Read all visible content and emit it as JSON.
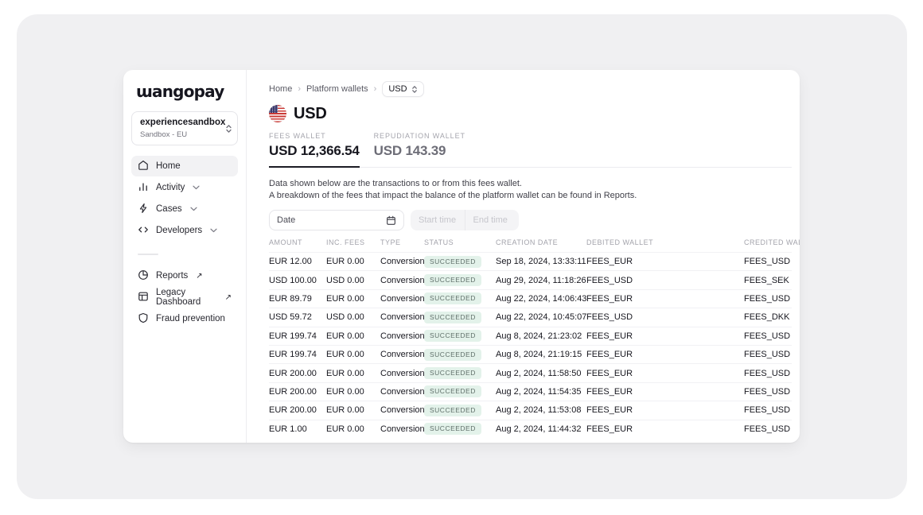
{
  "brand": {
    "logo_text": "ɯangopay"
  },
  "workspace": {
    "name": "experiencesandbox",
    "environment": "Sandbox - EU"
  },
  "sidebar": {
    "items": [
      {
        "label": "Home",
        "icon": "home-icon",
        "active": true
      },
      {
        "label": "Activity",
        "icon": "activity-icon",
        "expandable": true
      },
      {
        "label": "Cases",
        "icon": "cases-icon",
        "expandable": true
      },
      {
        "label": "Developers",
        "icon": "developers-icon",
        "expandable": true
      }
    ],
    "secondary_items": [
      {
        "label": "Reports",
        "icon": "pie-chart-icon",
        "external": true
      },
      {
        "label": "Legacy Dashboard",
        "icon": "dashboard-icon",
        "external": true
      },
      {
        "label": "Fraud prevention",
        "icon": "shield-icon",
        "external": false
      }
    ]
  },
  "icons": {
    "external_link": "↗"
  },
  "breadcrumb": {
    "items": [
      "Home",
      "Platform wallets"
    ],
    "separator": "›",
    "current": "USD"
  },
  "page": {
    "title": "USD",
    "flag": "us-flag"
  },
  "wallet_tabs": [
    {
      "label": "FEES WALLET",
      "value": "USD 12,366.54",
      "active": true
    },
    {
      "label": "REPUDIATION WALLET",
      "value": "USD 143.39",
      "active": false
    }
  ],
  "description": {
    "line1": "Data shown below are the transactions to or from this fees wallet.",
    "line2": "A breakdown of the fees that impact the balance of the platform wallet can be found in Reports."
  },
  "filters": {
    "date_placeholder": "Date",
    "start_time_placeholder": "Start time",
    "end_time_placeholder": "End time"
  },
  "table": {
    "columns": [
      "AMOUNT",
      "INC. FEES",
      "TYPE",
      "STATUS",
      "CREATION DATE",
      "DEBITED WALLET",
      "CREDITED WALLET"
    ],
    "rows": [
      {
        "amount": "EUR 12.00",
        "inc_fees": "EUR 0.00",
        "type": "Conversion",
        "status": "SUCCEEDED",
        "creation_date": "Sep 18, 2024, 13:33:11",
        "debited_wallet": "FEES_EUR",
        "credited_wallet": "FEES_USD"
      },
      {
        "amount": "USD 100.00",
        "inc_fees": "USD 0.00",
        "type": "Conversion",
        "status": "SUCCEEDED",
        "creation_date": "Aug 29, 2024, 11:18:26",
        "debited_wallet": "FEES_USD",
        "credited_wallet": "FEES_SEK"
      },
      {
        "amount": "EUR 89.79",
        "inc_fees": "EUR 0.00",
        "type": "Conversion",
        "status": "SUCCEEDED",
        "creation_date": "Aug 22, 2024, 14:06:43",
        "debited_wallet": "FEES_EUR",
        "credited_wallet": "FEES_USD"
      },
      {
        "amount": "USD 59.72",
        "inc_fees": "USD 0.00",
        "type": "Conversion",
        "status": "SUCCEEDED",
        "creation_date": "Aug 22, 2024, 10:45:07",
        "debited_wallet": "FEES_USD",
        "credited_wallet": "FEES_DKK"
      },
      {
        "amount": "EUR 199.74",
        "inc_fees": "EUR 0.00",
        "type": "Conversion",
        "status": "SUCCEEDED",
        "creation_date": "Aug 8, 2024, 21:23:02",
        "debited_wallet": "FEES_EUR",
        "credited_wallet": "FEES_USD"
      },
      {
        "amount": "EUR 199.74",
        "inc_fees": "EUR 0.00",
        "type": "Conversion",
        "status": "SUCCEEDED",
        "creation_date": "Aug 8, 2024, 21:19:15",
        "debited_wallet": "FEES_EUR",
        "credited_wallet": "FEES_USD"
      },
      {
        "amount": "EUR 200.00",
        "inc_fees": "EUR 0.00",
        "type": "Conversion",
        "status": "SUCCEEDED",
        "creation_date": "Aug 2, 2024, 11:58:50",
        "debited_wallet": "FEES_EUR",
        "credited_wallet": "FEES_USD"
      },
      {
        "amount": "EUR 200.00",
        "inc_fees": "EUR 0.00",
        "type": "Conversion",
        "status": "SUCCEEDED",
        "creation_date": "Aug 2, 2024, 11:54:35",
        "debited_wallet": "FEES_EUR",
        "credited_wallet": "FEES_USD"
      },
      {
        "amount": "EUR 200.00",
        "inc_fees": "EUR 0.00",
        "type": "Conversion",
        "status": "SUCCEEDED",
        "creation_date": "Aug 2, 2024, 11:53:08",
        "debited_wallet": "FEES_EUR",
        "credited_wallet": "FEES_USD"
      },
      {
        "amount": "EUR 1.00",
        "inc_fees": "EUR 0.00",
        "type": "Conversion",
        "status": "SUCCEEDED",
        "creation_date": "Aug 2, 2024, 11:44:32",
        "debited_wallet": "FEES_EUR",
        "credited_wallet": "FEES_USD"
      }
    ]
  },
  "colors": {
    "brand_navy": "#16161f",
    "canvas_bg": "#f0f0f2",
    "border": "#ececf0",
    "status_succeeded_bg": "#e3f2ea",
    "status_succeeded_text": "#5f6f69",
    "flag_red": "#cb3a36",
    "flag_blue": "#3c3b6e"
  }
}
